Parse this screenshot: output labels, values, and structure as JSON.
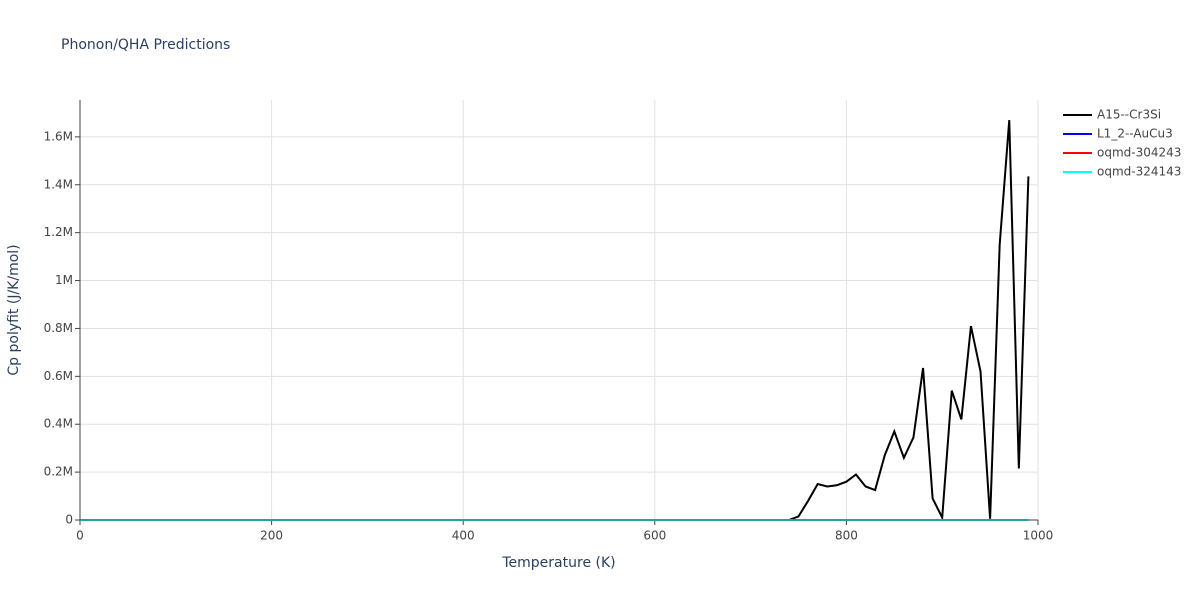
{
  "chart_data": {
    "type": "line",
    "title": "Phonon/QHA Predictions",
    "x_label": "Temperature (K)",
    "y_label": "Cp polyfit (J/K/mol)",
    "x": [
      0,
      10,
      20,
      30,
      40,
      50,
      60,
      70,
      80,
      90,
      100,
      110,
      120,
      130,
      140,
      150,
      160,
      170,
      180,
      190,
      200,
      210,
      220,
      230,
      240,
      250,
      260,
      270,
      280,
      290,
      300,
      310,
      320,
      330,
      340,
      350,
      360,
      370,
      380,
      390,
      400,
      410,
      420,
      430,
      440,
      450,
      460,
      470,
      480,
      490,
      500,
      510,
      520,
      530,
      540,
      550,
      560,
      570,
      580,
      590,
      600,
      610,
      620,
      630,
      640,
      650,
      660,
      670,
      680,
      690,
      700,
      710,
      720,
      730,
      740,
      750,
      760,
      770,
      780,
      790,
      800,
      810,
      820,
      830,
      840,
      850,
      860,
      870,
      880,
      890,
      900,
      910,
      920,
      930,
      940,
      950,
      960,
      970,
      980,
      990
    ],
    "series": [
      {
        "name": "A15--Cr3Si",
        "color": "#000000",
        "values": [
          0,
          0,
          0,
          0,
          0,
          0,
          0,
          0,
          0,
          0,
          0,
          0,
          0,
          0,
          0,
          0,
          0,
          0,
          0,
          0,
          0,
          0,
          0,
          0,
          0,
          0,
          0,
          0,
          0,
          0,
          0,
          0,
          0,
          0,
          0,
          0,
          0,
          0,
          0,
          0,
          0,
          0,
          0,
          0,
          0,
          0,
          0,
          0,
          0,
          0,
          0,
          0,
          0,
          0,
          0,
          0,
          0,
          0,
          0,
          0,
          0,
          0,
          0,
          0,
          0,
          0,
          0,
          0,
          0,
          0,
          0,
          0,
          0,
          0,
          0,
          15000,
          80000,
          150000,
          140000,
          145000,
          160000,
          190000,
          140000,
          125000,
          270000,
          370000,
          260000,
          345000,
          635000,
          90000,
          10000,
          540000,
          420000,
          810000,
          620000,
          5000,
          1150000,
          1670000,
          215000,
          1435000
        ]
      },
      {
        "name": "L1_2--AuCu3",
        "color": "#0000ff",
        "values": [
          0,
          0,
          0,
          0,
          0,
          0,
          0,
          0,
          0,
          0,
          0,
          0,
          0,
          0,
          0,
          0,
          0,
          0,
          0,
          0,
          0,
          0,
          0,
          0,
          0,
          0,
          0,
          0,
          0,
          0,
          0,
          0,
          0,
          0,
          0,
          0,
          0,
          0,
          0,
          0,
          0,
          0,
          0,
          0,
          0,
          0,
          0,
          0,
          0,
          0,
          0,
          0,
          0,
          0,
          0,
          0,
          0,
          0,
          0,
          0,
          0,
          0,
          0,
          0,
          0,
          0,
          0,
          0,
          0,
          0,
          0,
          0,
          0,
          0,
          0,
          0,
          0,
          0,
          0,
          0,
          0,
          0,
          0,
          0,
          0,
          0,
          0,
          0,
          0,
          0,
          0,
          0,
          0,
          0,
          0,
          0,
          0,
          0,
          0,
          0
        ]
      },
      {
        "name": "oqmd-304243",
        "color": "#ff0000",
        "values": [
          0,
          0,
          0,
          0,
          0,
          0,
          0,
          0,
          0,
          0,
          0,
          0,
          0,
          0,
          0,
          0,
          0,
          0,
          0,
          0,
          0,
          0,
          0,
          0,
          0,
          0,
          0,
          0,
          0,
          0,
          0,
          0,
          0,
          0,
          0,
          0,
          0,
          0,
          0,
          0,
          0,
          0,
          0,
          0,
          0,
          0,
          0,
          0,
          0,
          0,
          0,
          0,
          0,
          0,
          0,
          0,
          0,
          0,
          0,
          0,
          0,
          0,
          0,
          0,
          0,
          0,
          0,
          0,
          0,
          0,
          0,
          0,
          0,
          0,
          0,
          0,
          0,
          0,
          0,
          0,
          0,
          0,
          0,
          0,
          0,
          0,
          0,
          0,
          0,
          0,
          0,
          0,
          0,
          0,
          0,
          0,
          0,
          0,
          0,
          0
        ]
      },
      {
        "name": "oqmd-324143",
        "color": "#00ffff",
        "values": [
          0,
          0,
          0,
          0,
          0,
          0,
          0,
          0,
          0,
          0,
          0,
          0,
          0,
          0,
          0,
          0,
          0,
          0,
          0,
          0,
          0,
          0,
          0,
          0,
          0,
          0,
          0,
          0,
          0,
          0,
          0,
          0,
          0,
          0,
          0,
          0,
          0,
          0,
          0,
          0,
          0,
          0,
          0,
          0,
          0,
          0,
          0,
          0,
          0,
          0,
          0,
          0,
          0,
          0,
          0,
          0,
          0,
          0,
          0,
          0,
          0,
          0,
          0,
          0,
          0,
          0,
          0,
          0,
          0,
          0,
          0,
          0,
          0,
          0,
          0,
          0,
          0,
          0,
          0,
          0,
          0,
          0,
          0,
          0,
          0,
          0,
          0,
          0,
          0,
          0,
          0,
          0,
          0,
          0,
          0,
          0,
          0,
          0,
          0,
          0
        ]
      }
    ],
    "xlim": [
      0,
      1000
    ],
    "xticks": [
      0,
      200,
      400,
      600,
      800,
      1000
    ],
    "ylim": [
      0,
      1754000
    ],
    "yticks": [
      0,
      {
        "value": 200000,
        "label": "0.2M"
      },
      {
        "value": 400000,
        "label": "0.4M"
      },
      {
        "value": 600000,
        "label": "0.6M"
      },
      {
        "value": 800000,
        "label": "0.8M"
      },
      {
        "value": 1000000,
        "label": "1M"
      },
      {
        "value": 1200000,
        "label": "1.2M"
      },
      {
        "value": 1400000,
        "label": "1.4M"
      },
      {
        "value": 1600000,
        "label": "1.6M"
      }
    ],
    "grid": true
  }
}
